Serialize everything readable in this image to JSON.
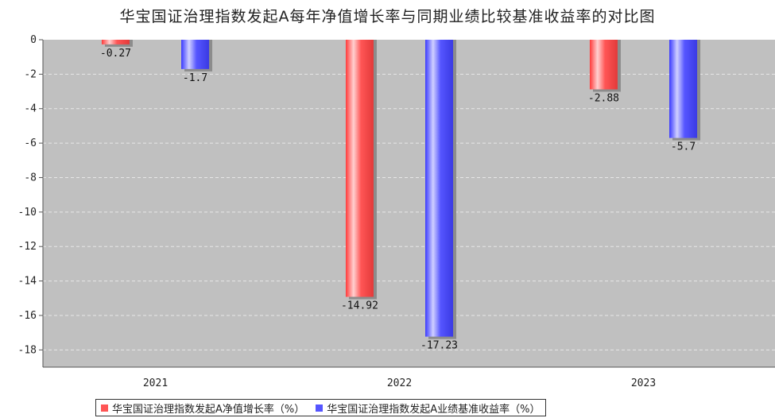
{
  "chart_data": {
    "type": "bar",
    "title": "华宝国证治理指数发起A每年净值增长率与同期业绩比较基准收益率的对比图",
    "categories": [
      "2021",
      "2022",
      "2023"
    ],
    "series": [
      {
        "name": "华宝国证治理指数发起A净值增长率（%）",
        "values": [
          -0.27,
          -14.92,
          -2.88
        ],
        "color": "#ff5555",
        "labels": [
          "-0.27",
          "-14.92",
          "-2.88"
        ]
      },
      {
        "name": "华宝国证治理指数发起A业绩基准收益率（%）",
        "values": [
          -1.7,
          -17.23,
          -5.7
        ],
        "color": "#5555ff",
        "labels": [
          "-1.7",
          "-17.23",
          "-5.7"
        ]
      }
    ],
    "ylim": [
      -19,
      0
    ],
    "yticks": [
      0,
      -2,
      -4,
      -6,
      -8,
      -10,
      -12,
      -14,
      -16,
      -18
    ],
    "ytick_labels": [
      "0",
      "-2",
      "-4",
      "-6",
      "-8",
      "-10",
      "-12",
      "-14",
      "-16",
      "-18"
    ],
    "grid": true,
    "legend_position": "bottom",
    "plot_background": "#c0c0c0"
  }
}
